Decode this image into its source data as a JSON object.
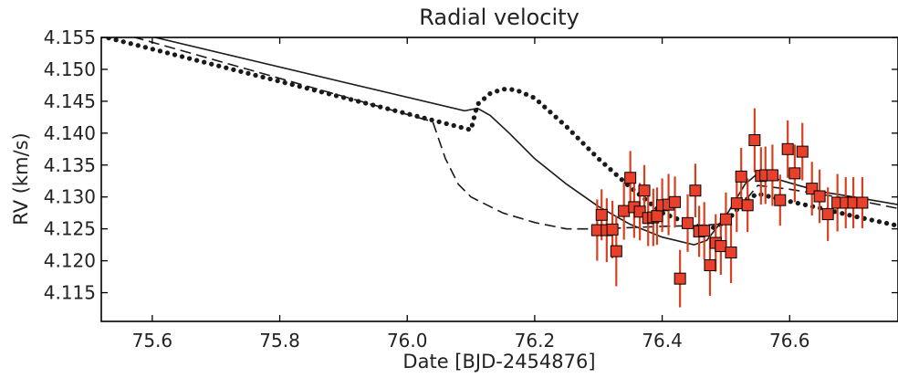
{
  "chart_data": {
    "type": "scatter",
    "title": "Radial velocity",
    "xlabel": "Date [BJD-2454876]",
    "ylabel": "RV (km/s)",
    "xlim": [
      75.52,
      76.77
    ],
    "ylim": [
      4.1105,
      4.155
    ],
    "grid": false,
    "xticks": [
      75.6,
      75.8,
      76.0,
      76.2,
      76.4,
      76.6
    ],
    "xtick_labels": [
      "75.6",
      "75.8",
      "76.0",
      "76.2",
      "76.4",
      "76.6"
    ],
    "yticks": [
      4.115,
      4.12,
      4.125,
      4.13,
      4.135,
      4.14,
      4.145,
      4.15,
      4.155
    ],
    "ytick_labels": [
      "4.115",
      "4.120",
      "4.125",
      "4.130",
      "4.135",
      "4.140",
      "4.145",
      "4.150",
      "4.155"
    ],
    "colors": {
      "observations": "#e8402a",
      "errorbar": "#d8401f",
      "models": "#1a1a1a"
    },
    "series": [
      {
        "style": "points-with-errorbars",
        "x": [
          76.298,
          76.305,
          76.313,
          76.322,
          76.328,
          76.34,
          76.35,
          76.356,
          76.365,
          76.372,
          76.378,
          76.386,
          76.392,
          76.4,
          76.41,
          76.42,
          76.428,
          76.44,
          76.452,
          76.458,
          76.466,
          76.475,
          76.484,
          76.492,
          76.5,
          76.508,
          76.517,
          76.524,
          76.534,
          76.545,
          76.555,
          76.562,
          76.573,
          76.585,
          76.597,
          76.608,
          76.62,
          76.635,
          76.647,
          76.66,
          76.675,
          76.688,
          76.7,
          76.714
        ],
        "y": [
          4.1248,
          4.1272,
          4.1248,
          4.1249,
          4.1215,
          4.1278,
          4.133,
          4.1284,
          4.1277,
          4.131,
          4.1267,
          4.1268,
          4.127,
          4.1287,
          4.1288,
          4.1292,
          4.1172,
          4.1259,
          4.131,
          4.1246,
          4.1247,
          4.1193,
          4.1228,
          4.1223,
          4.1265,
          4.1213,
          4.129,
          4.1332,
          4.1287,
          4.1389,
          4.1333,
          4.1334,
          4.1334,
          4.1295,
          4.1375,
          4.1337,
          4.1371,
          4.1313,
          4.1301,
          4.1273,
          4.1291,
          4.1291,
          4.1291,
          4.1291
        ],
        "yerr": [
          0.0048,
          0.004,
          0.005,
          0.0045,
          0.0055,
          0.0045,
          0.0042,
          0.0048,
          0.0045,
          0.004,
          0.0044,
          0.0045,
          0.0045,
          0.0042,
          0.0048,
          0.004,
          0.0045,
          0.0045,
          0.0042,
          0.004,
          0.0045,
          0.0048,
          0.0045,
          0.0045,
          0.0042,
          0.0048,
          0.0045,
          0.0045,
          0.0042,
          0.005,
          0.0045,
          0.0045,
          0.0048,
          0.004,
          0.0045,
          0.0045,
          0.0045,
          0.0042,
          0.0042,
          0.0042,
          0.0045,
          0.004,
          0.004,
          0.004
        ]
      },
      {
        "style": "solid",
        "x": [
          75.52,
          76.09,
          76.11,
          76.13,
          76.16,
          76.2,
          76.25,
          76.3,
          76.35,
          76.4,
          76.45,
          76.47,
          76.5,
          76.53,
          76.55,
          76.6,
          76.65,
          76.7,
          76.77
        ],
        "y": [
          4.157,
          4.1435,
          4.1439,
          4.1428,
          4.14,
          4.136,
          4.132,
          4.1285,
          4.1257,
          4.1237,
          4.1225,
          4.1232,
          4.127,
          4.132,
          4.1337,
          4.1322,
          4.1308,
          4.13,
          4.1288
        ]
      },
      {
        "style": "dashed",
        "x": [
          75.52,
          76.04,
          76.06,
          76.08,
          76.1,
          76.15,
          76.2,
          76.25,
          76.3,
          76.35,
          76.4,
          76.45,
          76.5,
          76.55,
          76.6,
          76.65,
          76.7,
          76.77
        ],
        "y": [
          4.1565,
          4.1418,
          4.136,
          4.132,
          4.13,
          4.1275,
          4.126,
          4.125,
          4.125,
          4.1252,
          4.1254,
          4.1255,
          4.1258,
          4.1318,
          4.1312,
          4.1304,
          4.1296,
          4.1282
        ]
      },
      {
        "style": "dotted",
        "x": [
          75.52,
          76.1,
          76.11,
          76.13,
          76.15,
          76.17,
          76.2,
          76.25,
          76.3,
          76.35,
          76.4,
          76.45,
          76.48,
          76.5,
          76.53,
          76.55,
          76.6,
          76.65,
          76.7,
          76.77
        ],
        "y": [
          4.1552,
          4.1405,
          4.1445,
          4.1462,
          4.1469,
          4.1468,
          4.1455,
          4.141,
          4.136,
          4.1315,
          4.1275,
          4.1255,
          4.1252,
          4.126,
          4.1295,
          4.1305,
          4.1293,
          4.1282,
          4.127,
          4.1255
        ]
      }
    ]
  }
}
